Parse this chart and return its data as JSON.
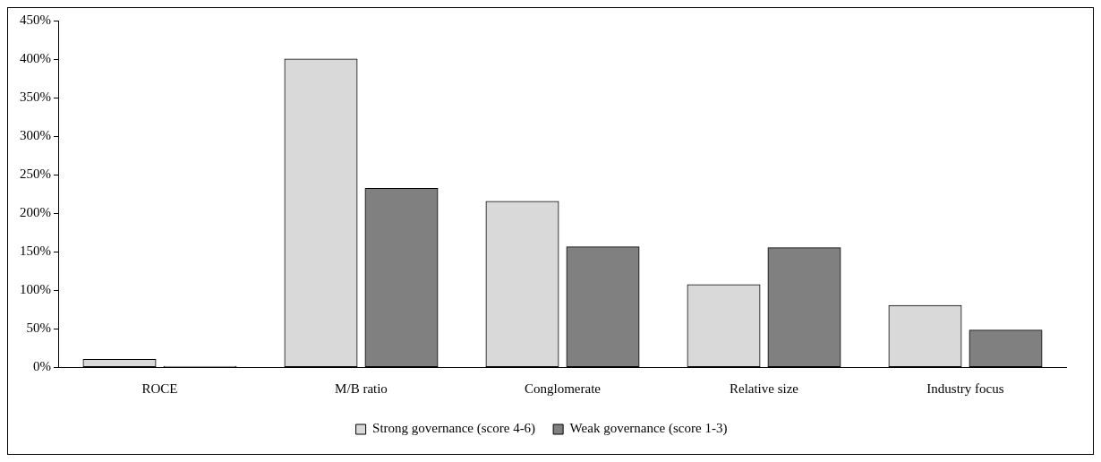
{
  "chart_data": {
    "type": "bar",
    "categories": [
      "ROCE",
      "M/B ratio",
      "Conglomerate",
      "Relative size",
      "Industry focus"
    ],
    "series": [
      {
        "name": "Strong governance (score 4-6)",
        "color": "#d9d9d9",
        "values": [
          10,
          400,
          215,
          107,
          80
        ]
      },
      {
        "name": "Weak governance (score 1-3)",
        "color": "#808080",
        "values": [
          1,
          232,
          156,
          155,
          48
        ]
      }
    ],
    "ylim": [
      0,
      450
    ],
    "yticks": [
      {
        "value": 0,
        "label": "0%"
      },
      {
        "value": 50,
        "label": "50%"
      },
      {
        "value": 100,
        "label": "100%"
      },
      {
        "value": 150,
        "label": "150%"
      },
      {
        "value": 200,
        "label": "200%"
      },
      {
        "value": 250,
        "label": "250%"
      },
      {
        "value": 300,
        "label": "300%"
      },
      {
        "value": 350,
        "label": "350%"
      },
      {
        "value": 400,
        "label": "400%"
      },
      {
        "value": 450,
        "label": "450%"
      }
    ],
    "grid": false,
    "legend": "bottom"
  }
}
